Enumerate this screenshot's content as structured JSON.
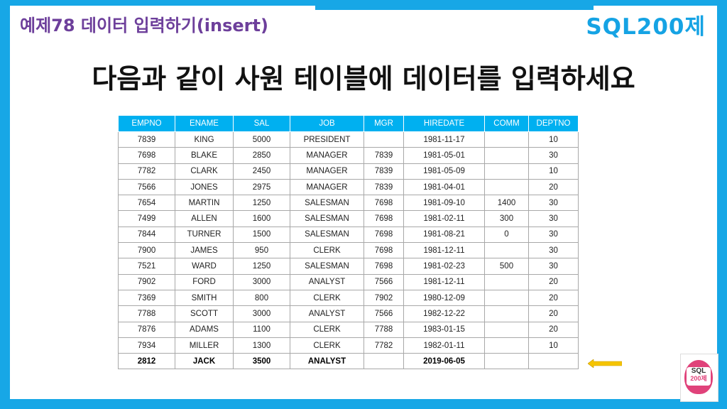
{
  "header": {
    "example_title": "예제78 데이터 입력하기(insert)",
    "brand": "SQL200제"
  },
  "headline": "다음과 같이 사원 테이블에 데이터를 입력하세요",
  "table": {
    "columns": [
      "EMPNO",
      "ENAME",
      "SAL",
      "JOB",
      "MGR",
      "HIREDATE",
      "COMM",
      "DEPTNO"
    ],
    "rows": [
      [
        "7839",
        "KING",
        "5000",
        "PRESIDENT",
        "",
        "1981-11-17",
        "",
        "10"
      ],
      [
        "7698",
        "BLAKE",
        "2850",
        "MANAGER",
        "7839",
        "1981-05-01",
        "",
        "30"
      ],
      [
        "7782",
        "CLARK",
        "2450",
        "MANAGER",
        "7839",
        "1981-05-09",
        "",
        "10"
      ],
      [
        "7566",
        "JONES",
        "2975",
        "MANAGER",
        "7839",
        "1981-04-01",
        "",
        "20"
      ],
      [
        "7654",
        "MARTIN",
        "1250",
        "SALESMAN",
        "7698",
        "1981-09-10",
        "1400",
        "30"
      ],
      [
        "7499",
        "ALLEN",
        "1600",
        "SALESMAN",
        "7698",
        "1981-02-11",
        "300",
        "30"
      ],
      [
        "7844",
        "TURNER",
        "1500",
        "SALESMAN",
        "7698",
        "1981-08-21",
        "0",
        "30"
      ],
      [
        "7900",
        "JAMES",
        "950",
        "CLERK",
        "7698",
        "1981-12-11",
        "",
        "30"
      ],
      [
        "7521",
        "WARD",
        "1250",
        "SALESMAN",
        "7698",
        "1981-02-23",
        "500",
        "30"
      ],
      [
        "7902",
        "FORD",
        "3000",
        "ANALYST",
        "7566",
        "1981-12-11",
        "",
        "20"
      ],
      [
        "7369",
        "SMITH",
        "800",
        "CLERK",
        "7902",
        "1980-12-09",
        "",
        "20"
      ],
      [
        "7788",
        "SCOTT",
        "3000",
        "ANALYST",
        "7566",
        "1982-12-22",
        "",
        "20"
      ],
      [
        "7876",
        "ADAMS",
        "1100",
        "CLERK",
        "7788",
        "1983-01-15",
        "",
        "20"
      ],
      [
        "7934",
        "MILLER",
        "1300",
        "CLERK",
        "7782",
        "1982-01-11",
        "",
        "10"
      ]
    ],
    "new_row": [
      "2812",
      "JACK",
      "3500",
      "ANALYST",
      "",
      "2019-06-05",
      "",
      ""
    ]
  },
  "colors": {
    "frame": "#17a7e6",
    "header_bg": "#00b0f0",
    "title_purple": "#6d3f9b",
    "brand_blue": "#15a3e4",
    "arrow": "#f5c400"
  },
  "icons": {
    "arrow": "left-arrow-icon",
    "book": "book-cover-icon"
  },
  "book_cover": {
    "line1": "SQL",
    "line2": "200제"
  }
}
